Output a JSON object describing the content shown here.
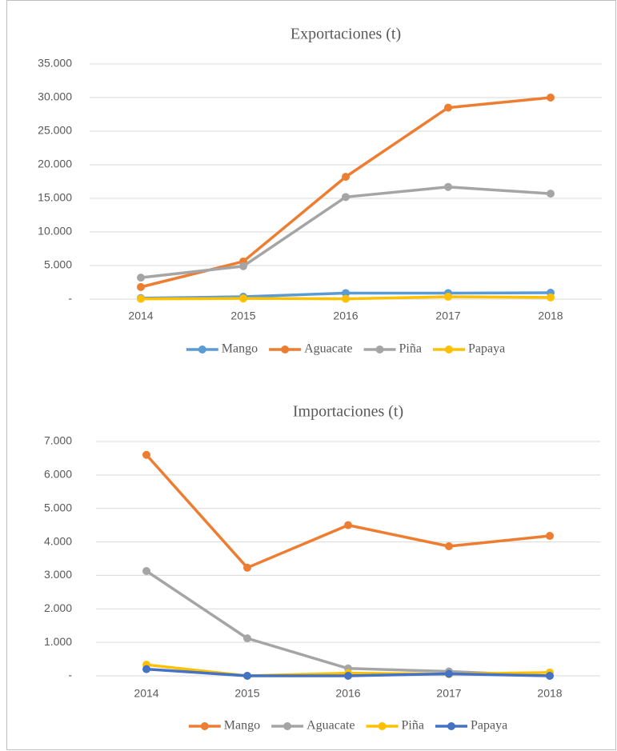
{
  "chart_data": [
    {
      "type": "line",
      "title": "Exportaciones (t)",
      "categories": [
        "2014",
        "2015",
        "2016",
        "2017",
        "2018"
      ],
      "series": [
        {
          "name": "Mango",
          "color": "#5b9bd5",
          "values": [
            150,
            350,
            900,
            900,
            950
          ]
        },
        {
          "name": "Aguacate",
          "color": "#ed7d31",
          "values": [
            1800,
            5600,
            18200,
            28500,
            30000
          ]
        },
        {
          "name": "Piña",
          "color": "#a5a5a5",
          "values": [
            3200,
            4900,
            15200,
            16700,
            15700
          ]
        },
        {
          "name": "Papaya",
          "color": "#ffc000",
          "values": [
            50,
            100,
            50,
            350,
            250
          ]
        }
      ],
      "ylim": [
        0,
        35000
      ],
      "yticks": [
        {
          "value": 0,
          "label": "-"
        },
        {
          "value": 5000,
          "label": "5.000"
        },
        {
          "value": 10000,
          "label": "10.000"
        },
        {
          "value": 15000,
          "label": "15.000"
        },
        {
          "value": 20000,
          "label": "20.000"
        },
        {
          "value": 25000,
          "label": "25.000"
        },
        {
          "value": 30000,
          "label": "30.000"
        },
        {
          "value": 35000,
          "label": "35.000"
        }
      ],
      "grid": true,
      "legend": "bottom"
    },
    {
      "type": "line",
      "title": "Importaciones (t)",
      "categories": [
        "2014",
        "2015",
        "2016",
        "2017",
        "2018"
      ],
      "series": [
        {
          "name": "Mango",
          "color": "#ed7d31",
          "values": [
            6600,
            3230,
            4500,
            3870,
            4180
          ]
        },
        {
          "name": "Aguacate",
          "color": "#a5a5a5",
          "values": [
            3130,
            1120,
            220,
            130,
            0
          ]
        },
        {
          "name": "Piña",
          "color": "#ffc000",
          "values": [
            330,
            0,
            80,
            50,
            100
          ]
        },
        {
          "name": "Papaya",
          "color": "#4472c4",
          "values": [
            200,
            0,
            0,
            60,
            0
          ]
        }
      ],
      "ylim": [
        0,
        7000
      ],
      "yticks": [
        {
          "value": 0,
          "label": "-"
        },
        {
          "value": 1000,
          "label": "1.000"
        },
        {
          "value": 2000,
          "label": "2.000"
        },
        {
          "value": 3000,
          "label": "3.000"
        },
        {
          "value": 4000,
          "label": "4.000"
        },
        {
          "value": 5000,
          "label": "5.000"
        },
        {
          "value": 6000,
          "label": "6.000"
        },
        {
          "value": 7000,
          "label": "7.000"
        }
      ],
      "grid": true,
      "legend": "bottom"
    }
  ]
}
